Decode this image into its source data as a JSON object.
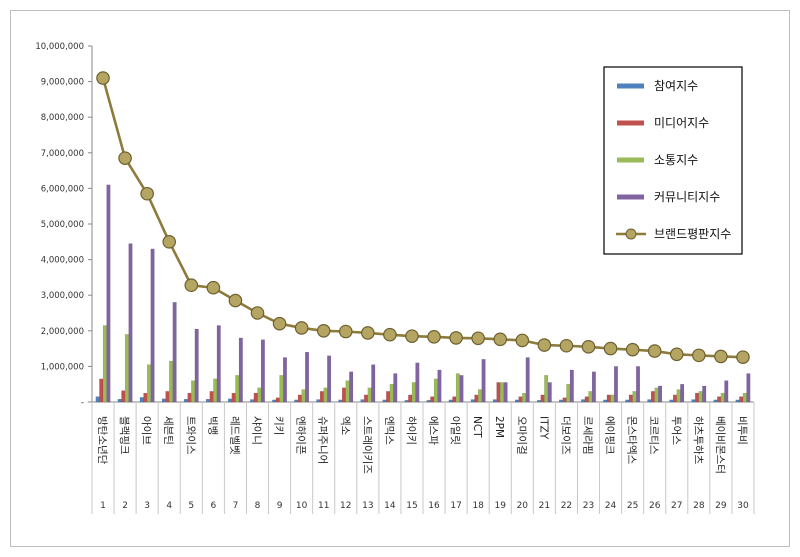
{
  "chart_data": {
    "type": "bar",
    "ylim": [
      0,
      10000000
    ],
    "yticks": [
      "-",
      "1,000,000",
      "2,000,000",
      "3,000,000",
      "4,000,000",
      "5,000,000",
      "6,000,000",
      "7,000,000",
      "8,000,000",
      "9,000,000",
      "10,000,000"
    ],
    "ranks": [
      "1",
      "2",
      "3",
      "4",
      "5",
      "6",
      "7",
      "8",
      "9",
      "10",
      "11",
      "12",
      "13",
      "14",
      "15",
      "16",
      "17",
      "18",
      "19",
      "20",
      "21",
      "22",
      "23",
      "24",
      "25",
      "26",
      "27",
      "28",
      "29",
      "30"
    ],
    "categories": [
      "방탄소년단",
      "블랙핑크",
      "아이브",
      "세븐틴",
      "트와이스",
      "빅뱅",
      "레드벨벳",
      "샤이니",
      "키키",
      "엔하이픈",
      "슈퍼주니어",
      "엑소",
      "스트레이키즈",
      "엔믹스",
      "하이키",
      "에스파",
      "아일릿",
      "NCT",
      "2PM",
      "오마이걸",
      "ITZY",
      "더보이즈",
      "르세라핌",
      "에이핑크",
      "몬스타엑스",
      "코르티스",
      "투어스",
      "하츠투하츠",
      "베이비몬스터",
      "비투비"
    ],
    "series": [
      {
        "name": "참여지수",
        "color": "#4f81bd",
        "values": [
          150000,
          80000,
          130000,
          90000,
          80000,
          80000,
          90000,
          70000,
          60000,
          60000,
          70000,
          60000,
          70000,
          60000,
          50000,
          50000,
          60000,
          70000,
          70000,
          60000,
          50000,
          60000,
          70000,
          60000,
          60000,
          70000,
          60000,
          70000,
          60000,
          60000
        ]
      },
      {
        "name": "미디어지수",
        "color": "#c0504d",
        "values": [
          650000,
          320000,
          250000,
          300000,
          250000,
          300000,
          250000,
          250000,
          120000,
          200000,
          300000,
          400000,
          200000,
          300000,
          200000,
          150000,
          150000,
          200000,
          550000,
          150000,
          200000,
          120000,
          150000,
          200000,
          200000,
          300000,
          200000,
          250000,
          150000,
          150000
        ]
      },
      {
        "name": "소통지수",
        "color": "#9bbb59",
        "values": [
          2150000,
          1900000,
          1050000,
          1150000,
          600000,
          650000,
          750000,
          400000,
          750000,
          350000,
          400000,
          600000,
          400000,
          500000,
          550000,
          650000,
          800000,
          350000,
          550000,
          250000,
          750000,
          500000,
          300000,
          200000,
          300000,
          400000,
          350000,
          300000,
          250000,
          250000
        ]
      },
      {
        "name": "커뮤니티지수",
        "color": "#8064a2",
        "values": [
          6100000,
          4450000,
          4300000,
          2800000,
          2050000,
          2150000,
          1800000,
          1750000,
          1250000,
          1400000,
          1300000,
          850000,
          1050000,
          800000,
          1100000,
          900000,
          750000,
          1200000,
          550000,
          1250000,
          550000,
          900000,
          850000,
          1000000,
          1000000,
          450000,
          500000,
          450000,
          600000,
          800000
        ]
      },
      {
        "name": "브랜드평판지수",
        "color": "#8c7b3a",
        "type": "line",
        "values": [
          9100000,
          6850000,
          5850000,
          4500000,
          3280000,
          3210000,
          2850000,
          2500000,
          2200000,
          2080000,
          2000000,
          1980000,
          1940000,
          1890000,
          1850000,
          1830000,
          1800000,
          1790000,
          1760000,
          1730000,
          1600000,
          1580000,
          1550000,
          1500000,
          1470000,
          1430000,
          1340000,
          1310000,
          1280000,
          1260000
        ]
      }
    ]
  }
}
